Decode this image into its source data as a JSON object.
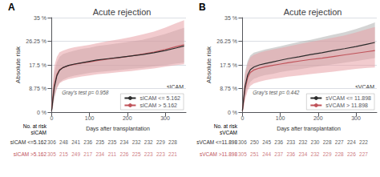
{
  "chart_data": [
    {
      "type": "line",
      "title": "Acute rejection",
      "panel_label": "A",
      "xlabel": "Days after transplantation",
      "ylabel": "Absolute risk",
      "xlim": [
        -5,
        355
      ],
      "xticks": [
        0,
        100,
        200,
        300
      ],
      "ylim": [
        0,
        0.35
      ],
      "yticks": [
        {
          "value": 0.0,
          "label": "0 %"
        },
        {
          "value": 0.0875,
          "label": "8.75 %"
        },
        {
          "value": 0.175,
          "label": "17.5 %"
        },
        {
          "value": 0.2625,
          "label": "26.25 %"
        },
        {
          "value": 0.35,
          "label": "35 %"
        }
      ],
      "grid": true,
      "legend": "lower right",
      "legend_title": "sICAM",
      "annotation": "Gray's test p= 0.958",
      "x": [
        0,
        3,
        7,
        14,
        21,
        30,
        45,
        60,
        80,
        100,
        120,
        150,
        180,
        210,
        240,
        270,
        300,
        330,
        350
      ],
      "series": [
        {
          "name": "sICAM <= 5.162",
          "color": "#2b2b2b",
          "ci_color": "#a0a0a0",
          "values": [
            0.005,
            0.04,
            0.09,
            0.135,
            0.155,
            0.165,
            0.173,
            0.178,
            0.183,
            0.188,
            0.193,
            0.198,
            0.203,
            0.208,
            0.213,
            0.22,
            0.228,
            0.238,
            0.245
          ],
          "ci_lower": [
            0,
            0.015,
            0.05,
            0.09,
            0.11,
            0.12,
            0.13,
            0.135,
            0.14,
            0.145,
            0.148,
            0.152,
            0.156,
            0.16,
            0.164,
            0.169,
            0.174,
            0.18,
            0.183
          ],
          "ci_upper": [
            0.02,
            0.085,
            0.145,
            0.185,
            0.205,
            0.215,
            0.222,
            0.228,
            0.234,
            0.238,
            0.245,
            0.25,
            0.256,
            0.262,
            0.268,
            0.278,
            0.289,
            0.303,
            0.312
          ]
        },
        {
          "name": "sICAM > 5.162",
          "color": "#c0535a",
          "ci_color": "#e8a0a5",
          "values": [
            0.005,
            0.05,
            0.1,
            0.14,
            0.157,
            0.165,
            0.172,
            0.177,
            0.182,
            0.186,
            0.191,
            0.197,
            0.202,
            0.208,
            0.215,
            0.222,
            0.232,
            0.243,
            0.25
          ],
          "ci_lower": [
            0,
            0.018,
            0.055,
            0.088,
            0.107,
            0.115,
            0.122,
            0.127,
            0.132,
            0.136,
            0.14,
            0.144,
            0.148,
            0.152,
            0.157,
            0.162,
            0.168,
            0.174,
            0.177
          ],
          "ci_upper": [
            0.02,
            0.1,
            0.17,
            0.205,
            0.222,
            0.228,
            0.235,
            0.24,
            0.245,
            0.249,
            0.255,
            0.263,
            0.27,
            0.278,
            0.288,
            0.298,
            0.313,
            0.33,
            0.34
          ]
        }
      ],
      "risk_table": {
        "header": "No. at risk\nsICAM",
        "x": [
          0,
          32,
          64,
          96,
          128,
          160,
          192,
          224,
          256,
          288,
          320
        ],
        "rows": [
          {
            "label": "sICAM <=5.162",
            "color": "#2b2b2b",
            "values": [
              306,
              248,
              241,
              236,
              235,
              235,
              234,
              232,
              232,
              229,
              228
            ]
          },
          {
            "label": "sICAM >5.162",
            "color": "#c0535a",
            "values": [
              305,
              215,
              249,
              217,
              234,
              211,
              226,
              225,
              223,
              223,
              221
            ]
          }
        ]
      }
    },
    {
      "type": "line",
      "title": "Acute rejection",
      "panel_label": "B",
      "xlabel": "Days after transplantation",
      "ylabel": "Absolute risk",
      "xlim": [
        -5,
        355
      ],
      "xticks": [
        0,
        100,
        200,
        300
      ],
      "ylim": [
        0,
        0.35
      ],
      "yticks": [
        {
          "value": 0.0,
          "label": "0 %"
        },
        {
          "value": 0.0875,
          "label": "8.75 %"
        },
        {
          "value": 0.175,
          "label": "17.5 %"
        },
        {
          "value": 0.2625,
          "label": "26.25 %"
        },
        {
          "value": 0.35,
          "label": "35 %"
        }
      ],
      "grid": true,
      "legend": "lower right",
      "legend_title": "sVCAM",
      "annotation": "Gray's test p= 0.442",
      "x": [
        0,
        3,
        7,
        14,
        21,
        30,
        45,
        60,
        80,
        100,
        120,
        150,
        180,
        210,
        240,
        270,
        300,
        330,
        350
      ],
      "series": [
        {
          "name": "sVCAM <= 11.898",
          "color": "#2b2b2b",
          "ci_color": "#a0a0a0",
          "values": [
            0.005,
            0.045,
            0.095,
            0.138,
            0.157,
            0.167,
            0.175,
            0.18,
            0.186,
            0.192,
            0.198,
            0.205,
            0.213,
            0.22,
            0.228,
            0.235,
            0.243,
            0.252,
            0.258
          ],
          "ci_lower": [
            0,
            0.018,
            0.055,
            0.092,
            0.112,
            0.123,
            0.131,
            0.137,
            0.142,
            0.148,
            0.153,
            0.159,
            0.165,
            0.171,
            0.177,
            0.183,
            0.189,
            0.196,
            0.2
          ],
          "ci_upper": [
            0.02,
            0.09,
            0.15,
            0.19,
            0.21,
            0.22,
            0.226,
            0.232,
            0.238,
            0.244,
            0.251,
            0.26,
            0.268,
            0.277,
            0.287,
            0.296,
            0.308,
            0.322,
            0.332
          ]
        },
        {
          "name": "sVCAM > 11.898",
          "color": "#c0535a",
          "ci_color": "#e8a0a5",
          "values": [
            0.005,
            0.04,
            0.085,
            0.128,
            0.147,
            0.156,
            0.163,
            0.168,
            0.173,
            0.178,
            0.183,
            0.189,
            0.195,
            0.2,
            0.206,
            0.212,
            0.218,
            0.224,
            0.228
          ],
          "ci_lower": [
            0,
            0.012,
            0.045,
            0.08,
            0.097,
            0.106,
            0.113,
            0.118,
            0.123,
            0.127,
            0.131,
            0.136,
            0.141,
            0.145,
            0.15,
            0.155,
            0.16,
            0.164,
            0.165
          ],
          "ci_upper": [
            0.02,
            0.09,
            0.14,
            0.182,
            0.203,
            0.212,
            0.22,
            0.226,
            0.232,
            0.237,
            0.243,
            0.252,
            0.26,
            0.268,
            0.276,
            0.284,
            0.295,
            0.308,
            0.315
          ]
        }
      ],
      "risk_table": {
        "header": "No. at risk\nsVCAM",
        "x": [
          0,
          32,
          64,
          96,
          128,
          160,
          192,
          224,
          256,
          288,
          320
        ],
        "rows": [
          {
            "label": "sVCAM <=11.898",
            "color": "#2b2b2b",
            "values": [
              306,
              250,
              245,
              236,
              233,
              232,
              230,
              228,
              227,
              224,
              222
            ]
          },
          {
            "label": "sVCAM >11.898",
            "color": "#c0535a",
            "values": [
              305,
              251,
              244,
              237,
              236,
              234,
              232,
              229,
              228,
              226,
              227
            ]
          }
        ]
      }
    }
  ]
}
